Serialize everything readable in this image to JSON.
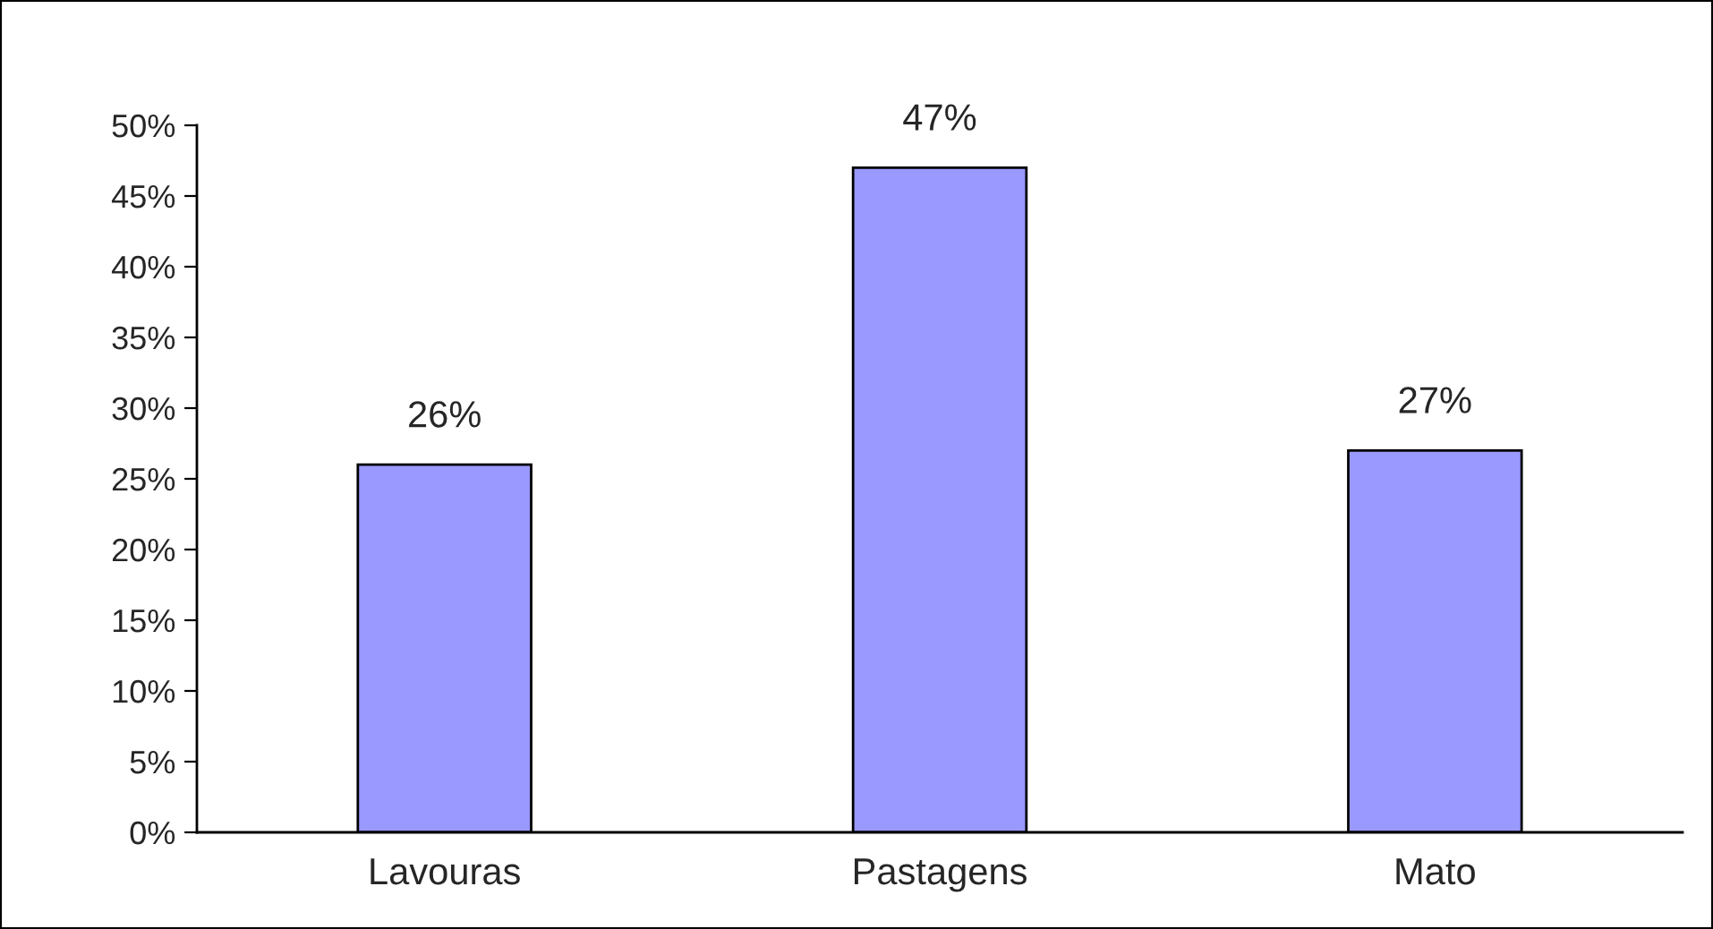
{
  "chart_data": {
    "type": "bar",
    "categories": [
      "Lavouras",
      "Pastagens",
      "Mato"
    ],
    "values": [
      26,
      47,
      27
    ],
    "value_labels": [
      "26%",
      "47%",
      "27%"
    ],
    "color": "#9999ff",
    "ylim": [
      0,
      50
    ],
    "yticks": [
      {
        "value": 0,
        "label": "0%"
      },
      {
        "value": 5,
        "label": "5%"
      },
      {
        "value": 10,
        "label": "10%"
      },
      {
        "value": 15,
        "label": "15%"
      },
      {
        "value": 20,
        "label": "20%"
      },
      {
        "value": 25,
        "label": "25%"
      },
      {
        "value": 30,
        "label": "30%"
      },
      {
        "value": 35,
        "label": "35%"
      },
      {
        "value": 40,
        "label": "40%"
      },
      {
        "value": 45,
        "label": "45%"
      },
      {
        "value": 50,
        "label": "50%"
      }
    ],
    "grid": false,
    "legend": false
  }
}
